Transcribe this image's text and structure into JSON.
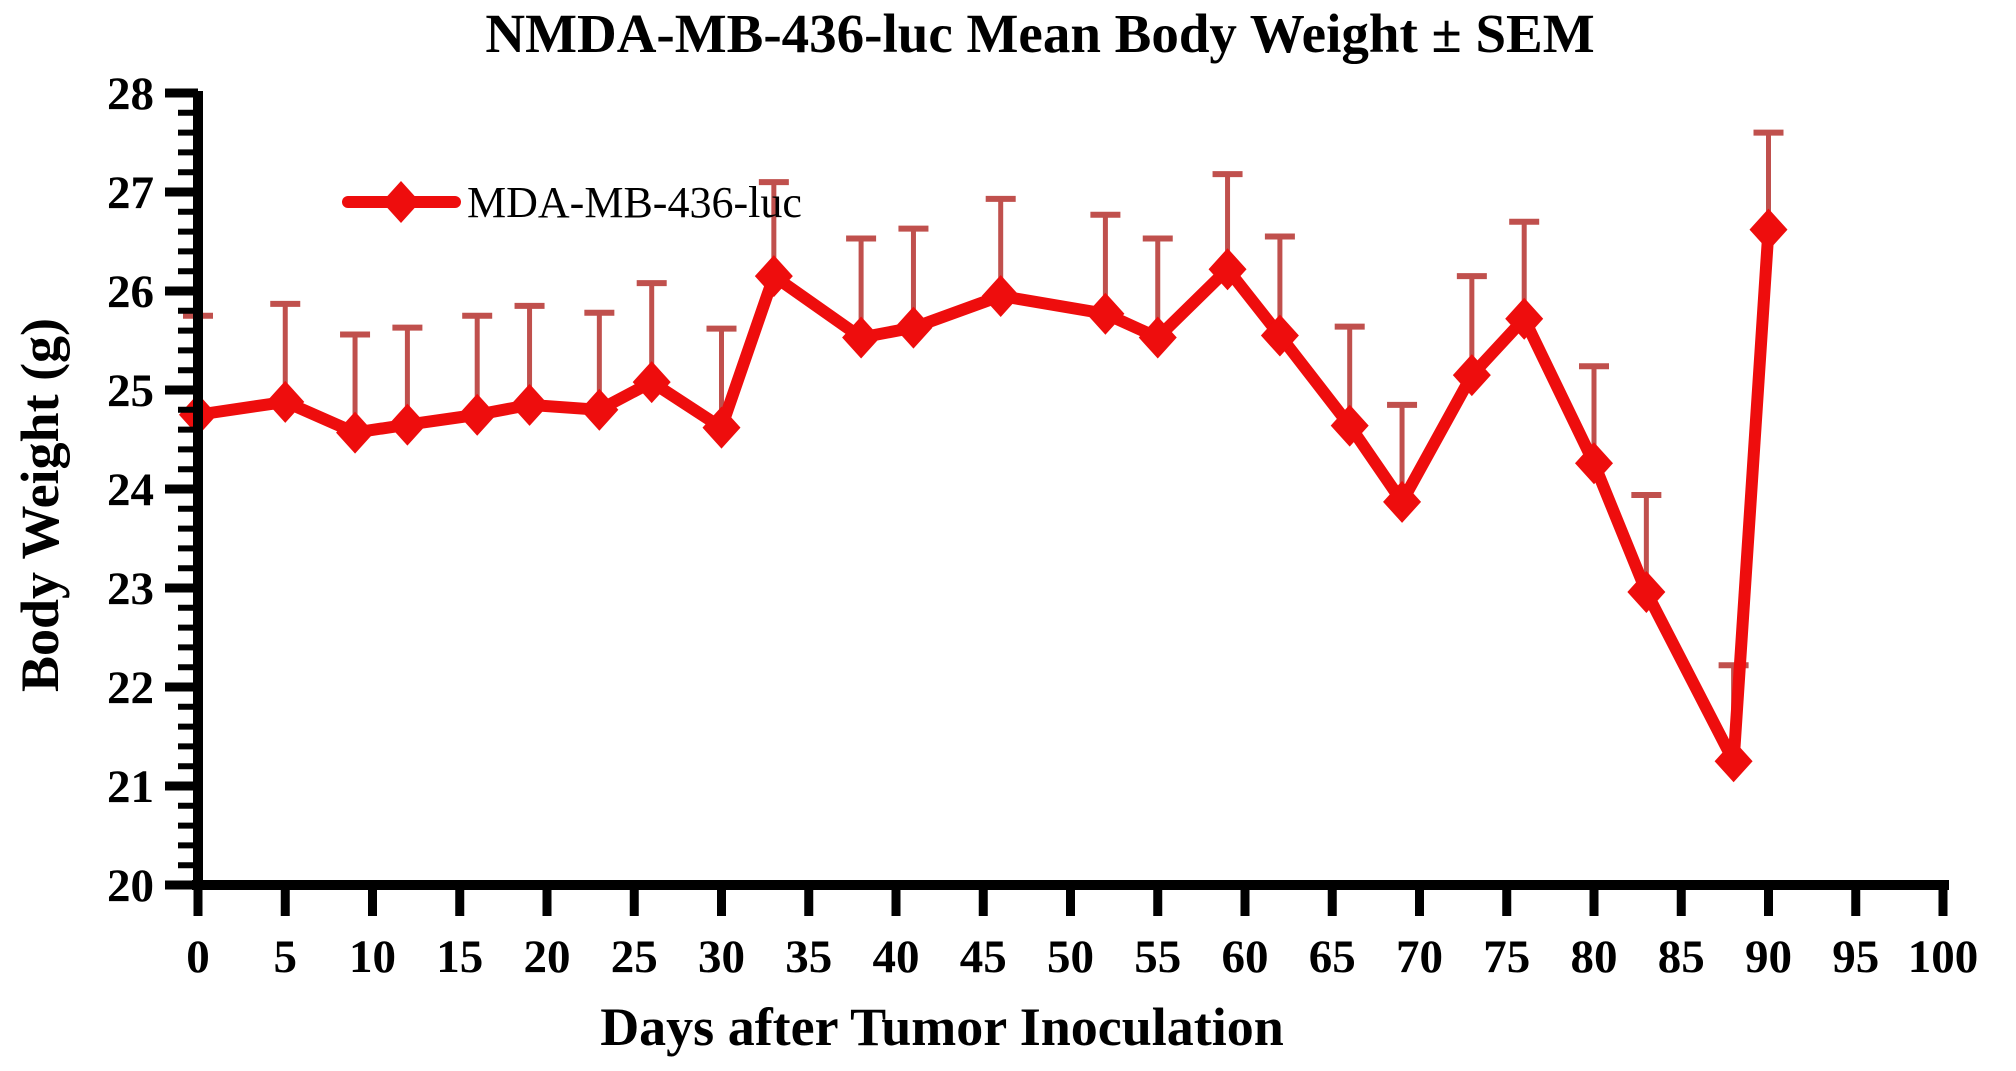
{
  "page": {
    "background": "#ffffff"
  },
  "chart_data": {
    "type": "line",
    "title": "NMDA-MB-436-luc Mean Body Weight ± SEM",
    "xlabel": "Days after Tumor Inoculation",
    "ylabel": "Body Weight (g)",
    "xlim": [
      0,
      100
    ],
    "ylim": [
      20,
      28
    ],
    "x_tick_step": 5,
    "y_tick_step": 1,
    "y_minor_tick_step": 0.2,
    "grid": false,
    "legend_position": "top-left-inside",
    "error_bars": "upper-SEM-only",
    "series": [
      {
        "name": "MDA-MB-436-luc",
        "marker": "diamond",
        "line_color": "#ee0d0d",
        "error_bar_color": "#c0504d",
        "x": [
          0,
          5,
          9,
          12,
          16,
          19,
          23,
          26,
          30,
          33,
          38,
          41,
          46,
          52,
          55,
          59,
          62,
          66,
          69,
          73,
          76,
          80,
          83,
          88,
          90
        ],
        "y": [
          24.75,
          24.88,
          24.57,
          24.65,
          24.75,
          24.85,
          24.8,
          25.08,
          24.62,
          26.15,
          25.53,
          25.63,
          25.95,
          25.77,
          25.53,
          26.22,
          25.55,
          24.64,
          23.87,
          25.15,
          25.72,
          24.26,
          22.96,
          21.25,
          26.62
        ],
        "sem": [
          1.0,
          0.99,
          0.99,
          0.98,
          1.0,
          1.0,
          0.98,
          1.0,
          1.0,
          0.95,
          1.0,
          1.0,
          0.98,
          1.0,
          1.0,
          0.96,
          1.0,
          1.0,
          0.98,
          1.0,
          0.98,
          0.98,
          0.98,
          0.97,
          0.98
        ]
      }
    ],
    "colors": {
      "axis": "#000000",
      "text": "#000000",
      "background": "#ffffff"
    }
  }
}
